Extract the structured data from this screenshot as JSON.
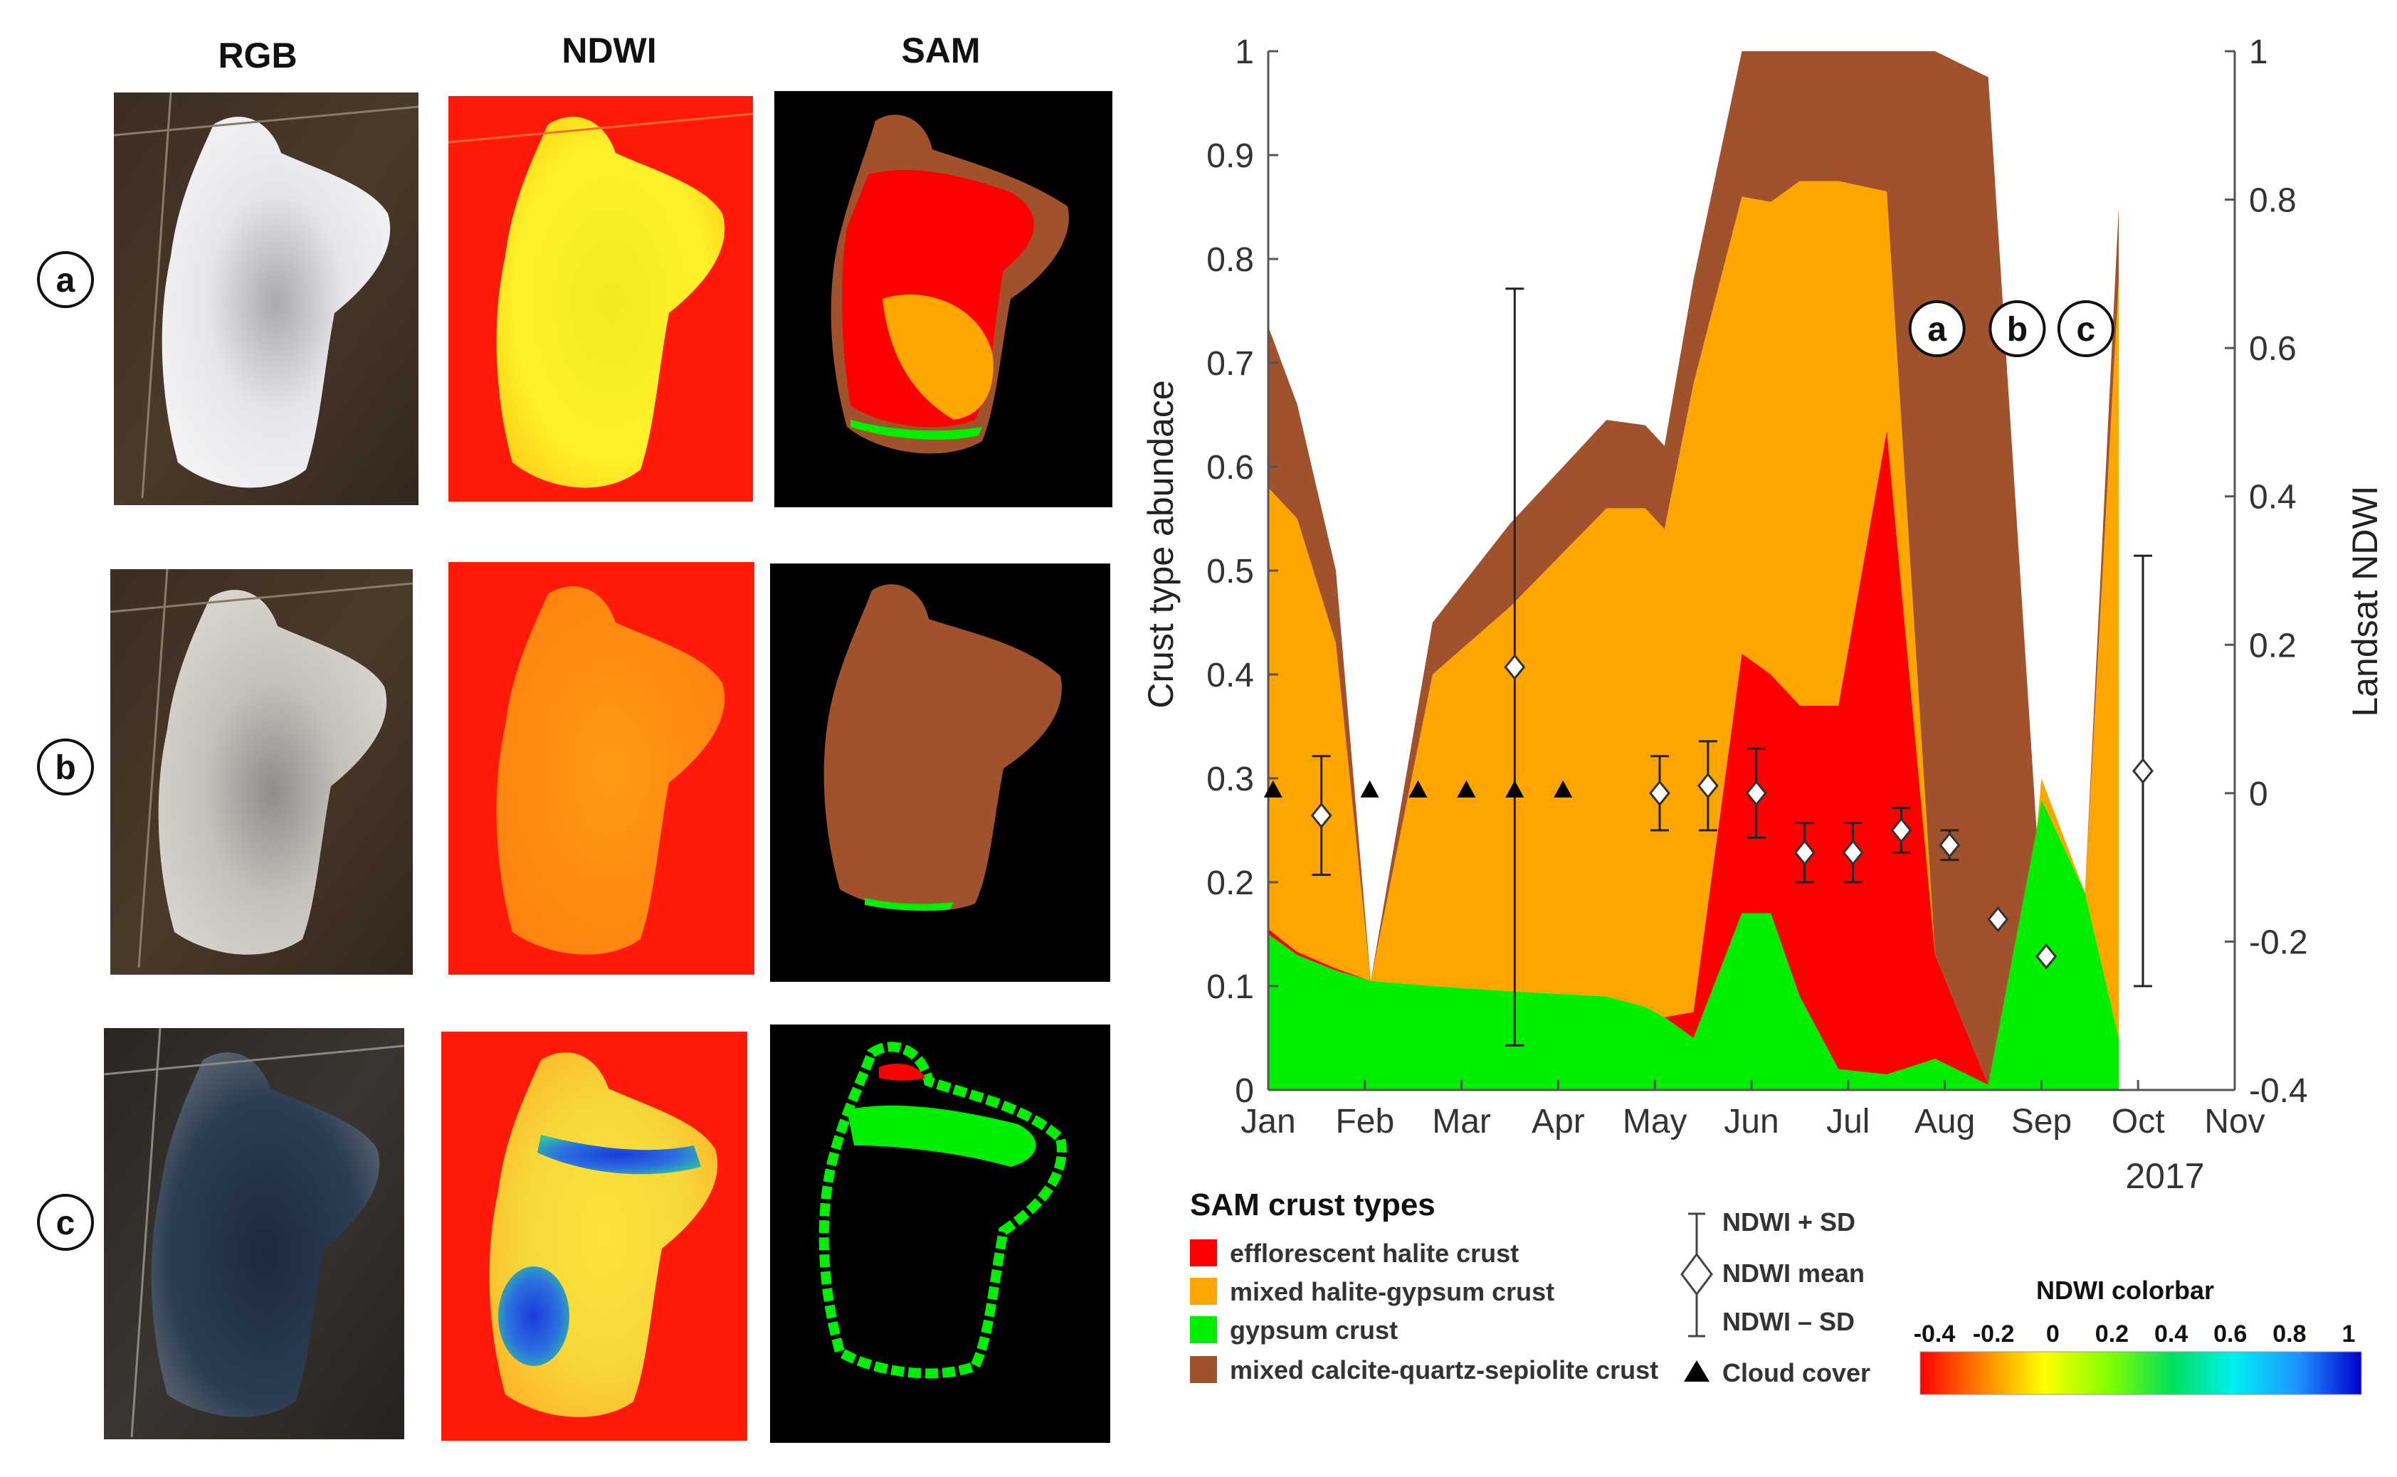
{
  "panels": {
    "column_headers": [
      "RGB",
      "NDWI",
      "SAM"
    ],
    "row_labels": [
      "a",
      "b",
      "c"
    ]
  },
  "chart_data": {
    "type": "area",
    "ylabel": "Crust type abundace",
    "y2label": "Landsat NDWI",
    "ylim": [
      0,
      1
    ],
    "y2lim": [
      -0.4,
      1
    ],
    "yticks": [
      "0",
      "0.1",
      "0.2",
      "0.3",
      "0.4",
      "0.5",
      "0.6",
      "0.7",
      "0.8",
      "0.9",
      "1"
    ],
    "y2ticks": [
      "-0.4",
      "-0.2",
      "0",
      "0.2",
      "0.4",
      "0.6",
      "0.8",
      "1"
    ],
    "xticks": [
      "Jan",
      "Feb",
      "Mar",
      "Apr",
      "May",
      "Jun",
      "Jul",
      "Aug",
      "Sep",
      "Oct",
      "Nov"
    ],
    "year_label": "2017",
    "x": [
      1,
      1.3,
      1.7,
      2.06,
      2.7,
      3.5,
      4.5,
      4.9,
      5.1,
      5.4,
      5.9,
      6.2,
      6.5,
      6.9,
      7.4,
      7.9,
      8.45,
      8.95,
      9.0,
      9.45,
      9.8
    ],
    "series": [
      {
        "name": "gypsum crust",
        "color": "#00ee00",
        "values": [
          0.15,
          0.13,
          0.115,
          0.105,
          0.1,
          0.095,
          0.09,
          0.08,
          0.07,
          0.05,
          0.17,
          0.17,
          0.09,
          0.02,
          0.015,
          0.03,
          0.005,
          0.25,
          0.28,
          0.19,
          0.05
        ]
      },
      {
        "name": "efflorescent halite crust",
        "color": "#ff0000",
        "values": [
          0.005,
          0.003,
          0.002,
          0.0,
          0.0,
          0.0,
          0.0,
          0.0,
          0.0,
          0.025,
          0.25,
          0.23,
          0.28,
          0.35,
          0.62,
          0.1,
          0.0,
          0.0,
          0.0,
          0.0,
          0.0
        ]
      },
      {
        "name": "mixed halite-gypsum crust",
        "color": "#ffa500",
        "values": [
          0.425,
          0.417,
          0.313,
          0.0,
          0.3,
          0.37,
          0.47,
          0.48,
          0.47,
          0.605,
          0.44,
          0.455,
          0.505,
          0.505,
          0.23,
          0.0,
          0.0,
          0.0,
          0.02,
          0.0,
          0.73
        ]
      },
      {
        "name": "mixed calcite-quartz-sepiolite crust",
        "color": "#a0522d",
        "values": [
          0.155,
          0.11,
          0.07,
          0.0,
          0.05,
          0.08,
          0.085,
          0.08,
          0.08,
          0.1,
          0.14,
          0.145,
          0.125,
          0.125,
          0.135,
          0.87,
          0.97,
          0.0,
          0.0,
          0.0,
          0.07
        ]
      }
    ],
    "ndwi_points": [
      {
        "x": 1.55,
        "mean": -0.03,
        "sd": 0.08
      },
      {
        "x": 3.55,
        "mean": 0.17,
        "sd": 0.51
      },
      {
        "x": 5.05,
        "mean": 0.0,
        "sd": 0.05
      },
      {
        "x": 5.55,
        "mean": 0.01,
        "sd": 0.06
      },
      {
        "x": 6.05,
        "mean": 0.0,
        "sd": 0.06
      },
      {
        "x": 6.55,
        "mean": -0.08,
        "sd": 0.04
      },
      {
        "x": 7.05,
        "mean": -0.08,
        "sd": 0.04
      },
      {
        "x": 7.55,
        "mean": -0.05,
        "sd": 0.03
      },
      {
        "x": 8.05,
        "mean": -0.07,
        "sd": 0.02
      },
      {
        "x": 8.55,
        "mean": -0.17,
        "sd": 0.0
      },
      {
        "x": 9.05,
        "mean": -0.22,
        "sd": 0.0
      },
      {
        "x": 10.05,
        "mean": 0.03,
        "sd": 0.29
      }
    ],
    "cloud_cover_x": [
      1.05,
      2.05,
      2.55,
      3.05,
      3.55,
      4.05
    ],
    "markers": [
      {
        "label": "a",
        "x": 7.92
      },
      {
        "label": "b",
        "x": 8.75
      },
      {
        "label": "c",
        "x": 9.46
      }
    ],
    "legend": {
      "title": "SAM crust types",
      "items": [
        "efflorescent halite crust",
        "mixed halite-gypsum crust",
        "gypsum crust",
        "mixed calcite-quartz-sepiolite crust"
      ],
      "ndwi_items": [
        "NDWI + SD",
        "NDWI mean",
        "NDWI – SD",
        "Cloud cover"
      ]
    },
    "colorbar": {
      "title": "NDWI colorbar",
      "ticks": [
        "-0.4",
        "-0.2",
        "0",
        "0.2",
        "0.4",
        "0.6",
        "0.8",
        "1"
      ]
    }
  }
}
